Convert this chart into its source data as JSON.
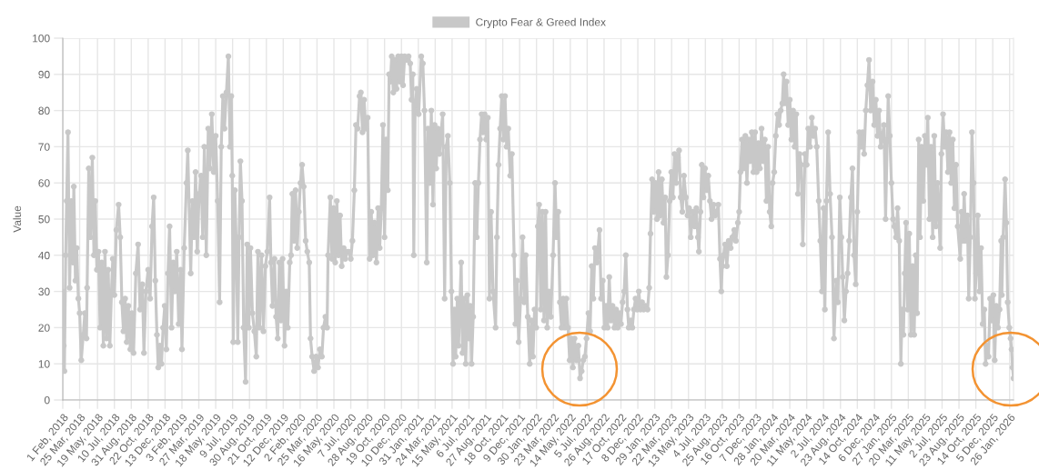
{
  "chart_data": {
    "type": "line",
    "ylabel": "Value",
    "x": [
      "2018-02-01",
      "2018-02-04",
      "2018-02-06",
      "2018-02-10",
      "2018-02-13",
      "2018-02-17",
      "2018-02-22",
      "2018-02-27",
      "2018-03-04",
      "2018-03-07",
      "2018-03-12",
      "2018-03-16",
      "2018-03-21",
      "2018-03-25",
      "2018-03-30",
      "2018-04-05",
      "2018-04-10",
      "2018-04-15",
      "2018-04-17",
      "2018-04-22",
      "2018-04-27",
      "2018-05-03",
      "2018-05-08",
      "2018-05-12",
      "2018-05-17",
      "2018-05-22",
      "2018-05-27",
      "2018-06-01",
      "2018-06-06",
      "2018-06-11",
      "2018-06-16",
      "2018-06-21",
      "2018-06-26",
      "2018-07-01",
      "2018-07-05",
      "2018-07-10",
      "2018-07-16",
      "2018-07-23",
      "2018-07-28",
      "2018-08-02",
      "2018-08-07",
      "2018-08-12",
      "2018-08-17",
      "2018-08-22",
      "2018-08-28",
      "2018-09-02",
      "2018-09-07",
      "2018-09-14",
      "2018-09-21",
      "2018-09-27",
      "2018-10-04",
      "2018-10-09",
      "2018-10-15",
      "2018-10-22",
      "2018-10-28",
      "2018-11-03",
      "2018-11-08",
      "2018-11-13",
      "2018-11-18",
      "2018-11-22",
      "2018-11-27",
      "2018-12-02",
      "2018-12-07",
      "2018-12-12",
      "2018-12-17",
      "2018-12-22",
      "2018-12-27",
      "2019-01-02",
      "2019-01-07",
      "2019-01-12",
      "2019-01-18",
      "2019-01-24",
      "2019-01-30",
      "2019-02-03",
      "2019-02-10",
      "2019-02-17",
      "2019-02-21",
      "2019-03-02",
      "2019-03-07",
      "2019-03-12",
      "2019-03-17",
      "2019-03-22",
      "2019-03-28",
      "2019-04-03",
      "2019-04-08",
      "2019-04-13",
      "2019-04-19",
      "2019-04-25",
      "2019-04-30",
      "2019-05-06",
      "2019-05-12",
      "2019-05-18",
      "2019-05-24",
      "2019-05-30",
      "2019-06-04",
      "2019-06-09",
      "2019-06-14",
      "2019-06-20",
      "2019-06-26",
      "2019-07-01",
      "2019-07-05",
      "2019-07-08",
      "2019-07-11",
      "2019-07-16",
      "2019-07-21",
      "2019-07-25",
      "2019-07-29",
      "2019-08-02",
      "2019-08-07",
      "2019-08-12",
      "2019-08-18",
      "2019-08-23",
      "2019-08-28",
      "2019-09-02",
      "2019-09-08",
      "2019-09-14",
      "2019-09-20",
      "2019-09-25",
      "2019-09-30",
      "2019-10-06",
      "2019-10-12",
      "2019-10-18",
      "2019-10-24",
      "2019-10-31",
      "2019-11-04",
      "2019-11-09",
      "2019-11-15",
      "2019-11-20",
      "2019-11-25",
      "2019-11-30",
      "2019-12-05",
      "2019-12-10",
      "2019-12-16",
      "2019-12-21",
      "2019-12-26",
      "2020-01-01",
      "2020-01-05",
      "2020-01-09",
      "2020-01-14",
      "2020-01-19",
      "2020-01-24",
      "2020-01-29",
      "2020-02-03",
      "2020-02-08",
      "2020-02-13",
      "2020-02-19",
      "2020-02-24",
      "2020-03-01",
      "2020-03-05",
      "2020-03-10",
      "2020-03-16",
      "2020-03-22",
      "2020-03-28",
      "2020-04-03",
      "2020-04-09",
      "2020-04-14",
      "2020-04-20",
      "2020-04-25",
      "2020-04-28",
      "2020-05-05",
      "2020-05-10",
      "2020-05-15",
      "2020-05-20",
      "2020-05-25",
      "2020-05-30",
      "2020-06-04",
      "2020-06-09",
      "2020-06-15",
      "2020-06-20",
      "2020-06-26",
      "2020-07-01",
      "2020-07-07",
      "2020-07-12",
      "2020-07-18",
      "2020-07-23",
      "2020-07-28",
      "2020-08-03",
      "2020-08-07",
      "2020-08-12",
      "2020-08-17",
      "2020-08-22",
      "2020-08-28",
      "2020-09-03",
      "2020-09-08",
      "2020-09-13",
      "2020-09-18",
      "2020-09-24",
      "2020-09-29",
      "2020-10-04",
      "2020-10-09",
      "2020-10-14",
      "2020-10-19",
      "2020-10-24",
      "2020-10-29",
      "2020-11-02",
      "2020-11-06",
      "2020-11-10",
      "2020-11-15",
      "2020-11-20",
      "2020-11-25",
      "2020-11-30",
      "2020-12-05",
      "2020-12-10",
      "2020-12-15",
      "2020-12-20",
      "2020-12-25",
      "2021-01-01",
      "2021-01-06",
      "2021-01-10",
      "2021-01-14",
      "2021-01-17",
      "2021-01-21",
      "2021-01-26",
      "2021-02-01",
      "2021-02-09",
      "2021-02-14",
      "2021-02-19",
      "2021-02-26",
      "2021-03-02",
      "2021-03-07",
      "2021-03-12",
      "2021-03-17",
      "2021-03-22",
      "2021-03-27",
      "2021-04-01",
      "2021-04-06",
      "2021-04-11",
      "2021-04-16",
      "2021-04-22",
      "2021-04-27",
      "2021-05-02",
      "2021-05-08",
      "2021-05-13",
      "2021-05-18",
      "2021-05-22",
      "2021-05-26",
      "2021-05-31",
      "2021-06-04",
      "2021-06-12",
      "2021-06-16",
      "2021-06-21",
      "2021-06-26",
      "2021-07-01",
      "2021-07-06",
      "2021-07-10",
      "2021-07-14",
      "2021-07-19",
      "2021-07-25",
      "2021-07-30",
      "2021-08-04",
      "2021-08-09",
      "2021-08-14",
      "2021-08-18",
      "2021-08-23",
      "2021-08-28",
      "2021-09-02",
      "2021-09-07",
      "2021-09-12",
      "2021-09-18",
      "2021-09-26",
      "2021-09-30",
      "2021-10-05",
      "2021-10-10",
      "2021-10-15",
      "2021-10-20",
      "2021-10-25",
      "2021-10-30",
      "2021-11-04",
      "2021-11-10",
      "2021-11-15",
      "2021-11-22",
      "2021-11-26",
      "2021-12-01",
      "2021-12-06",
      "2021-12-12",
      "2021-12-18",
      "2021-12-23",
      "2021-12-28",
      "2022-01-03",
      "2022-01-09",
      "2022-01-14",
      "2022-01-19",
      "2022-01-24",
      "2022-01-29",
      "2022-02-03",
      "2022-02-07",
      "2022-02-12",
      "2022-02-17",
      "2022-02-22",
      "2022-02-27",
      "2022-03-04",
      "2022-03-09",
      "2022-03-15",
      "2022-03-22",
      "2022-03-28",
      "2022-04-02",
      "2022-04-07",
      "2022-04-12",
      "2022-04-17",
      "2022-04-22",
      "2022-04-27",
      "2022-05-02",
      "2022-05-07",
      "2022-05-12",
      "2022-05-17",
      "2022-05-22",
      "2022-05-27",
      "2022-06-02",
      "2022-06-08",
      "2022-06-13",
      "2022-06-18",
      "2022-06-23",
      "2022-06-28",
      "2022-07-03",
      "2022-07-09",
      "2022-07-14",
      "2022-07-19",
      "2022-07-24",
      "2022-07-29",
      "2022-08-04",
      "2022-08-12",
      "2022-08-17",
      "2022-08-22",
      "2022-08-27",
      "2022-09-01",
      "2022-09-06",
      "2022-09-11",
      "2022-09-16",
      "2022-09-21",
      "2022-09-27",
      "2022-10-02",
      "2022-10-07",
      "2022-10-12",
      "2022-10-17",
      "2022-10-22",
      "2022-10-27",
      "2022-11-01",
      "2022-11-06",
      "2022-11-10",
      "2022-11-16",
      "2022-11-21",
      "2022-11-26",
      "2022-12-01",
      "2022-12-06",
      "2022-12-11",
      "2022-12-16",
      "2022-12-21",
      "2022-12-26",
      "2023-01-01",
      "2023-01-07",
      "2023-01-12",
      "2023-01-16",
      "2023-01-21",
      "2023-01-26",
      "2023-01-31",
      "2023-02-05",
      "2023-02-10",
      "2023-02-15",
      "2023-02-20",
      "2023-02-25",
      "2023-03-02",
      "2023-03-06",
      "2023-03-11",
      "2023-03-16",
      "2023-03-21",
      "2023-03-26",
      "2023-03-31",
      "2023-04-05",
      "2023-04-10",
      "2023-04-14",
      "2023-04-19",
      "2023-04-24",
      "2023-04-29",
      "2023-05-05",
      "2023-05-10",
      "2023-05-15",
      "2023-05-20",
      "2023-05-26",
      "2023-06-01",
      "2023-06-06",
      "2023-06-11",
      "2023-06-14",
      "2023-06-19",
      "2023-06-23",
      "2023-06-28",
      "2023-07-03",
      "2023-07-08",
      "2023-07-13",
      "2023-07-18",
      "2023-07-23",
      "2023-07-29",
      "2023-08-03",
      "2023-08-08",
      "2023-08-13",
      "2023-08-18",
      "2023-08-22",
      "2023-08-25",
      "2023-08-29",
      "2023-09-03",
      "2023-09-08",
      "2023-09-14",
      "2023-09-20",
      "2023-09-25",
      "2023-10-01",
      "2023-10-06",
      "2023-10-12",
      "2023-10-16",
      "2023-10-20",
      "2023-10-25",
      "2023-10-30",
      "2023-11-04",
      "2023-11-09",
      "2023-11-14",
      "2023-11-19",
      "2023-11-24",
      "2023-11-29",
      "2023-12-04",
      "2023-12-09",
      "2023-12-14",
      "2023-12-19",
      "2023-12-24",
      "2023-12-29",
      "2024-01-03",
      "2024-01-08",
      "2024-01-13",
      "2024-01-18",
      "2024-01-23",
      "2024-01-27",
      "2024-02-01",
      "2024-02-06",
      "2024-02-11",
      "2024-02-16",
      "2024-02-21",
      "2024-02-26",
      "2024-03-01",
      "2024-03-05",
      "2024-03-10",
      "2024-03-15",
      "2024-03-20",
      "2024-03-25",
      "2024-03-30",
      "2024-04-04",
      "2024-04-09",
      "2024-04-14",
      "2024-04-19",
      "2024-04-24",
      "2024-04-29",
      "2024-05-06",
      "2024-05-11",
      "2024-05-16",
      "2024-05-21",
      "2024-05-27",
      "2024-06-01",
      "2024-06-06",
      "2024-06-11",
      "2024-06-17",
      "2024-06-22",
      "2024-06-27",
      "2024-07-02",
      "2024-07-06",
      "2024-07-11",
      "2024-07-16",
      "2024-07-22",
      "2024-07-28",
      "2024-08-03",
      "2024-08-10",
      "2024-08-15",
      "2024-08-21",
      "2024-08-26",
      "2024-08-30",
      "2024-09-04",
      "2024-09-09",
      "2024-09-14",
      "2024-09-19",
      "2024-09-24",
      "2024-09-29",
      "2024-10-04",
      "2024-10-09",
      "2024-10-14",
      "2024-10-20",
      "2024-10-25",
      "2024-10-30",
      "2024-11-04",
      "2024-11-09",
      "2024-11-14",
      "2024-11-19",
      "2024-11-24",
      "2024-11-30",
      "2024-12-05",
      "2024-12-10",
      "2024-12-15",
      "2024-12-20",
      "2024-12-25",
      "2024-12-30",
      "2025-01-04",
      "2025-01-09",
      "2025-01-14",
      "2025-01-17",
      "2025-01-22",
      "2025-01-27",
      "2025-02-01",
      "2025-02-05",
      "2025-02-10",
      "2025-02-15",
      "2025-02-20",
      "2025-02-25",
      "2025-03-01",
      "2025-03-05",
      "2025-03-09",
      "2025-03-13",
      "2025-03-18",
      "2025-03-23",
      "2025-03-28",
      "2025-04-02",
      "2025-04-07",
      "2025-04-12",
      "2025-04-16",
      "2025-04-21",
      "2025-04-25",
      "2025-04-30",
      "2025-05-05",
      "2025-05-10",
      "2025-05-15",
      "2025-05-19",
      "2025-05-24",
      "2025-05-29",
      "2025-06-03",
      "2025-06-08",
      "2025-06-13",
      "2025-06-18",
      "2025-06-26",
      "2025-06-30",
      "2025-07-05",
      "2025-07-10",
      "2025-07-15",
      "2025-07-20",
      "2025-07-25",
      "2025-07-30",
      "2025-08-04",
      "2025-08-09",
      "2025-08-14",
      "2025-08-19",
      "2025-08-27",
      "2025-08-31",
      "2025-09-04",
      "2025-09-08",
      "2025-09-13",
      "2025-09-18",
      "2025-09-22",
      "2025-09-27",
      "2025-10-02",
      "2025-10-07",
      "2025-10-11",
      "2025-10-15",
      "2025-10-20",
      "2025-10-25",
      "2025-10-30",
      "2025-11-04",
      "2025-11-09",
      "2025-11-13",
      "2025-11-17",
      "2025-11-22",
      "2025-11-27",
      "2025-12-02",
      "2025-12-07",
      "2025-12-11",
      "2025-12-16",
      "2025-12-21",
      "2025-12-26",
      "2025-12-31",
      "2026-01-02",
      "2026-01-06",
      "2026-01-12",
      "2026-01-16",
      "2026-01-20",
      "2026-01-25",
      "2026-01-29",
      "2026-02-01",
      "2026-02-04",
      "2026-02-07"
    ],
    "series": [
      {
        "name": "Crypto Fear & Greed Index",
        "color": "#c8c8c8",
        "values": [
          30,
          15,
          8,
          40,
          55,
          74,
          31,
          55,
          38,
          59,
          33,
          42,
          28,
          24,
          11,
          18,
          24,
          17,
          31,
          64,
          45,
          67,
          40,
          55,
          36,
          41,
          20,
          38,
          15,
          41,
          17,
          36,
          15,
          30,
          39,
          29,
          47,
          54,
          45,
          27,
          19,
          28,
          16,
          26,
          14,
          24,
          13,
          35,
          43,
          25,
          32,
          13,
          30,
          36,
          28,
          48,
          56,
          33,
          18,
          9,
          15,
          10,
          20,
          26,
          14,
          35,
          48,
          20,
          38,
          30,
          41,
          21,
          36,
          14,
          42,
          60,
          69,
          35,
          55,
          45,
          63,
          41,
          57,
          62,
          45,
          70,
          40,
          75,
          64,
          79,
          63,
          73,
          55,
          27,
          70,
          84,
          75,
          85,
          95,
          70,
          84,
          62,
          16,
          58,
          40,
          16,
          45,
          66,
          55,
          20,
          5,
          43,
          20,
          42,
          24,
          19,
          12,
          41,
          20,
          40,
          19,
          37,
          41,
          56,
          38,
          26,
          39,
          23,
          17,
          38,
          22,
          39,
          15,
          30,
          20,
          38,
          40,
          57,
          44,
          58,
          42,
          52,
          60,
          65,
          59,
          44,
          41,
          38,
          17,
          12,
          8,
          12,
          9,
          14,
          12,
          20,
          23,
          20,
          40,
          56,
          39,
          53,
          38,
          55,
          40,
          51,
          37,
          42,
          39,
          41,
          41,
          39,
          44,
          58,
          76,
          75,
          84,
          85,
          74,
          83,
          75,
          78,
          39,
          52,
          40,
          49,
          38,
          53,
          42,
          53,
          76,
          45,
          72,
          58,
          90,
          88,
          95,
          85,
          94,
          86,
          95,
          88,
          95,
          87,
          95,
          94,
          95,
          93,
          83,
          90,
          40,
          80,
          86,
          79,
          95,
          93,
          80,
          38,
          75,
          60,
          80,
          54,
          76,
          64,
          75,
          68,
          74,
          79,
          28,
          70,
          73,
          60,
          30,
          10,
          25,
          12,
          28,
          15,
          38,
          13,
          28,
          10,
          29,
          17,
          26,
          10,
          23,
          60,
          45,
          60,
          72,
          79,
          74,
          79,
          72,
          78,
          28,
          52,
          30,
          20,
          45,
          65,
          75,
          84,
          72,
          84,
          70,
          75,
          62,
          68,
          40,
          21,
          33,
          16,
          28,
          45,
          27,
          40,
          23,
          10,
          22,
          12,
          25,
          20,
          48,
          54,
          25,
          52,
          22,
          52,
          20,
          30,
          23,
          40,
          60,
          45,
          52,
          27,
          20,
          28,
          20,
          28,
          20,
          11,
          17,
          9,
          17,
          11,
          15,
          6,
          8,
          11,
          12,
          17,
          24,
          19,
          37,
          28,
          42,
          38,
          47,
          28,
          33,
          20,
          26,
          20,
          34,
          22,
          26,
          20,
          25,
          20,
          24,
          21,
          27,
          30,
          40,
          25,
          20,
          22,
          20,
          25,
          28,
          25,
          30,
          25,
          27,
          25,
          26,
          25,
          31,
          46,
          61,
          52,
          60,
          50,
          63,
          51,
          61,
          49,
          56,
          34,
          40,
          55,
          63,
          56,
          68,
          60,
          67,
          69,
          56,
          52,
          62,
          56,
          51,
          53,
          45,
          52,
          48,
          53,
          45,
          41,
          52,
          65,
          56,
          64,
          58,
          62,
          55,
          50,
          54,
          51,
          52,
          54,
          39,
          30,
          37,
          40,
          43,
          37,
          44,
          42,
          45,
          47,
          44,
          49,
          52,
          63,
          72,
          64,
          73,
          60,
          72,
          66,
          74,
          63,
          74,
          63,
          71,
          64,
          75,
          66,
          72,
          55,
          70,
          52,
          48,
          60,
          63,
          73,
          79,
          76,
          80,
          82,
          90,
          82,
          88,
          76,
          83,
          72,
          80,
          70,
          79,
          57,
          68,
          65,
          43,
          68,
          65,
          75,
          70,
          78,
          73,
          75,
          70,
          55,
          44,
          30,
          53,
          25,
          55,
          74,
          57,
          45,
          17,
          33,
          27,
          56,
          45,
          34,
          22,
          30,
          35,
          44,
          56,
          64,
          40,
          32,
          52,
          74,
          70,
          74,
          68,
          80,
          87,
          94,
          80,
          88,
          76,
          83,
          73,
          80,
          70,
          73,
          76,
          50,
          72,
          84,
          73,
          60,
          50,
          48,
          45,
          53,
          44,
          10,
          25,
          18,
          35,
          49,
          25,
          46,
          18,
          37,
          18,
          40,
          24,
          72,
          45,
          70,
          55,
          73,
          65,
          78,
          50,
          70,
          45,
          73,
          48,
          60,
          42,
          68,
          79,
          70,
          74,
          63,
          74,
          60,
          72,
          53,
          65,
          48,
          39,
          52,
          44,
          57,
          44,
          51,
          28,
          45,
          74,
          60,
          28,
          35,
          51,
          30,
          42,
          21,
          25,
          10,
          15,
          12,
          28,
          22,
          29,
          11,
          26,
          20,
          25,
          44,
          29,
          45,
          61,
          49,
          27,
          20,
          17,
          14,
          9,
          6
        ]
      }
    ],
    "xlim": [
      "2018-02-01",
      "2026-02-07"
    ],
    "ylim": [
      0,
      100
    ],
    "xticks": [
      {
        "value": "2018-02-01",
        "label": "1 Feb, 2018"
      },
      {
        "value": "2018-03-25",
        "label": "25 Mar, 2018"
      },
      {
        "value": "2018-05-19",
        "label": "19 May, 2018"
      },
      {
        "value": "2018-07-10",
        "label": "10 Jul, 2018"
      },
      {
        "value": "2018-08-31",
        "label": "31 Aug, 2018"
      },
      {
        "value": "2018-10-22",
        "label": "22 Oct, 2018"
      },
      {
        "value": "2018-12-13",
        "label": "13 Dec, 2018"
      },
      {
        "value": "2019-02-03",
        "label": "3 Feb, 2019"
      },
      {
        "value": "2019-03-27",
        "label": "27 Mar, 2019"
      },
      {
        "value": "2019-05-18",
        "label": "18 May, 2019"
      },
      {
        "value": "2019-07-09",
        "label": "9 Jul, 2019"
      },
      {
        "value": "2019-08-30",
        "label": "30 Aug, 2019"
      },
      {
        "value": "2019-10-21",
        "label": "21 Oct, 2019"
      },
      {
        "value": "2019-12-12",
        "label": "12 Dec, 2019"
      },
      {
        "value": "2020-02-02",
        "label": "2 Feb, 2020"
      },
      {
        "value": "2020-03-25",
        "label": "25 Mar, 2020"
      },
      {
        "value": "2020-05-16",
        "label": "16 May, 2020"
      },
      {
        "value": "2020-07-07",
        "label": "7 Jul, 2020"
      },
      {
        "value": "2020-08-28",
        "label": "28 Aug, 2020"
      },
      {
        "value": "2020-10-19",
        "label": "19 Oct, 2020"
      },
      {
        "value": "2020-12-10",
        "label": "10 Dec, 2020"
      },
      {
        "value": "2021-01-31",
        "label": "31 Jan, 2021"
      },
      {
        "value": "2021-03-24",
        "label": "24 Mar, 2021"
      },
      {
        "value": "2021-05-15",
        "label": "15 May, 2021"
      },
      {
        "value": "2021-07-06",
        "label": "6 Jul, 2021"
      },
      {
        "value": "2021-08-27",
        "label": "27 Aug, 2021"
      },
      {
        "value": "2021-10-18",
        "label": "18 Oct, 2021"
      },
      {
        "value": "2021-12-09",
        "label": "9 Dec, 2021"
      },
      {
        "value": "2022-01-30",
        "label": "30 Jan, 2022"
      },
      {
        "value": "2022-03-23",
        "label": "23 Mar, 2022"
      },
      {
        "value": "2022-05-14",
        "label": "14 May, 2022"
      },
      {
        "value": "2022-07-05",
        "label": "5 Jul, 2022"
      },
      {
        "value": "2022-08-26",
        "label": "26 Aug, 2022"
      },
      {
        "value": "2022-10-17",
        "label": "17 Oct, 2022"
      },
      {
        "value": "2022-12-08",
        "label": "8 Dec, 2022"
      },
      {
        "value": "2023-01-29",
        "label": "29 Jan, 2023"
      },
      {
        "value": "2023-03-22",
        "label": "22 Mar, 2023"
      },
      {
        "value": "2023-05-13",
        "label": "13 May, 2023"
      },
      {
        "value": "2023-07-04",
        "label": "4 Jul, 2023"
      },
      {
        "value": "2023-08-25",
        "label": "25 Aug, 2023"
      },
      {
        "value": "2023-10-16",
        "label": "16 Oct, 2023"
      },
      {
        "value": "2023-12-07",
        "label": "7 Dec, 2023"
      },
      {
        "value": "2024-01-28",
        "label": "28 Jan, 2024"
      },
      {
        "value": "2024-03-20",
        "label": "20 Mar, 2024"
      },
      {
        "value": "2024-05-11",
        "label": "11 May, 2024"
      },
      {
        "value": "2024-07-02",
        "label": "2 Jul, 2024"
      },
      {
        "value": "2024-08-23",
        "label": "23 Aug, 2024"
      },
      {
        "value": "2024-10-14",
        "label": "14 Oct, 2024"
      },
      {
        "value": "2024-12-06",
        "label": "6 Dec, 2024"
      },
      {
        "value": "2025-01-27",
        "label": "27 Jan, 2025"
      },
      {
        "value": "2025-03-20",
        "label": "20 Mar, 2025"
      },
      {
        "value": "2025-05-11",
        "label": "11 May, 2025"
      },
      {
        "value": "2025-07-02",
        "label": "2 Jul, 2025"
      },
      {
        "value": "2025-08-23",
        "label": "23 Aug, 2025"
      },
      {
        "value": "2025-10-14",
        "label": "14 Oct, 2025"
      },
      {
        "value": "2025-12-05",
        "label": "5 Dec, 2025"
      },
      {
        "value": "2026-01-26",
        "label": "26 Jan, 2026"
      }
    ],
    "yticks": [
      0,
      10,
      20,
      30,
      40,
      50,
      60,
      70,
      80,
      90,
      100
    ],
    "grid": true,
    "legend": "top",
    "marker": "circle",
    "line_style": "solid"
  }
}
